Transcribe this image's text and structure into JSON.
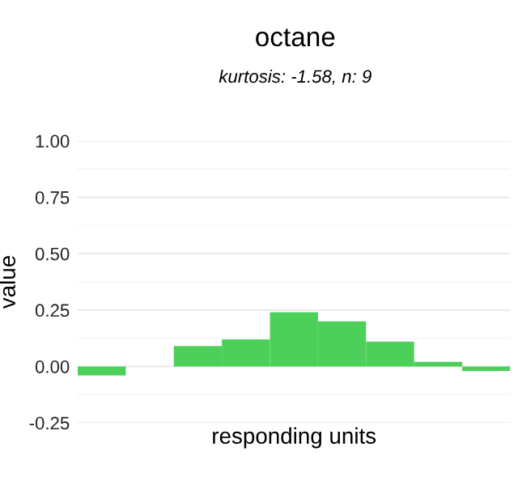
{
  "chart_data": {
    "type": "bar",
    "title": "octane",
    "subtitle": "kurtosis: -1.58, n: 9",
    "xlabel": "responding units",
    "ylabel": "value",
    "categories": [
      null,
      null,
      null,
      null,
      null,
      null,
      null,
      null,
      null
    ],
    "values": [
      -0.04,
      0.0,
      0.09,
      0.12,
      0.24,
      0.2,
      0.11,
      0.02,
      -0.02
    ],
    "color": "#4cd05a",
    "ylim": [
      -0.25,
      1.0
    ],
    "yticks": [
      {
        "value": -0.25,
        "label": "-0.25"
      },
      {
        "value": 0,
        "label": "0.00"
      },
      {
        "value": 0.25,
        "label": "0.25"
      },
      {
        "value": 0.5,
        "label": "0.50"
      },
      {
        "value": 0.75,
        "label": "0.75"
      },
      {
        "value": 1,
        "label": "1.00"
      }
    ],
    "grid": "y",
    "tick_labels": "y"
  }
}
